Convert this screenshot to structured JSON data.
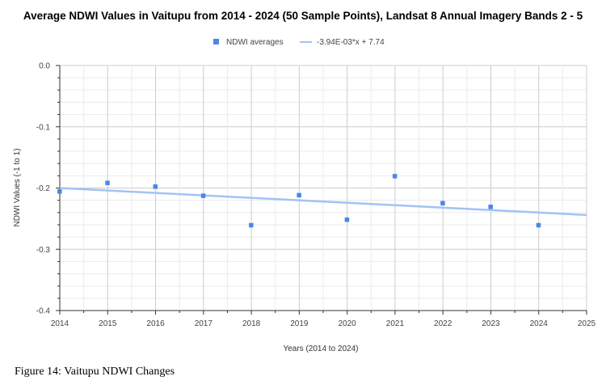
{
  "chart_data": {
    "type": "scatter",
    "title": "Average NDWI Values in Vaitupu from 2014 - 2024 (50 Sample Points), Landsat 8 Annual Imagery Bands 2 - 5",
    "xlabel": "Years (2014 to 2024)",
    "ylabel": "NDWI Values (-1 to 1)",
    "xlim": [
      2014,
      2025
    ],
    "ylim": [
      -0.4,
      0.0
    ],
    "x_ticks": [
      "2014",
      "2015",
      "2016",
      "2017",
      "2018",
      "2019",
      "2020",
      "2021",
      "2022",
      "2023",
      "2024",
      "2025"
    ],
    "y_ticks": [
      "0.0",
      "-0.1",
      "-0.2",
      "-0.3",
      "-0.4"
    ],
    "grid": true,
    "legend_position": "top",
    "series": [
      {
        "name": "NDWI averages",
        "color": "#4a86e8",
        "x": [
          2014,
          2015,
          2016,
          2017,
          2018,
          2019,
          2020,
          2021,
          2022,
          2023,
          2024
        ],
        "y": [
          -0.206,
          -0.192,
          -0.198,
          -0.213,
          -0.261,
          -0.212,
          -0.252,
          -0.181,
          -0.225,
          -0.231,
          -0.261
        ]
      }
    ],
    "trendline": {
      "name": "-3.94E-03*x + 7.74",
      "color": "#a4c2f4",
      "x": [
        2014,
        2025
      ],
      "y": [
        -0.2,
        -0.244
      ]
    }
  },
  "caption": "Figure 14: Vaitupu NDWI Changes"
}
